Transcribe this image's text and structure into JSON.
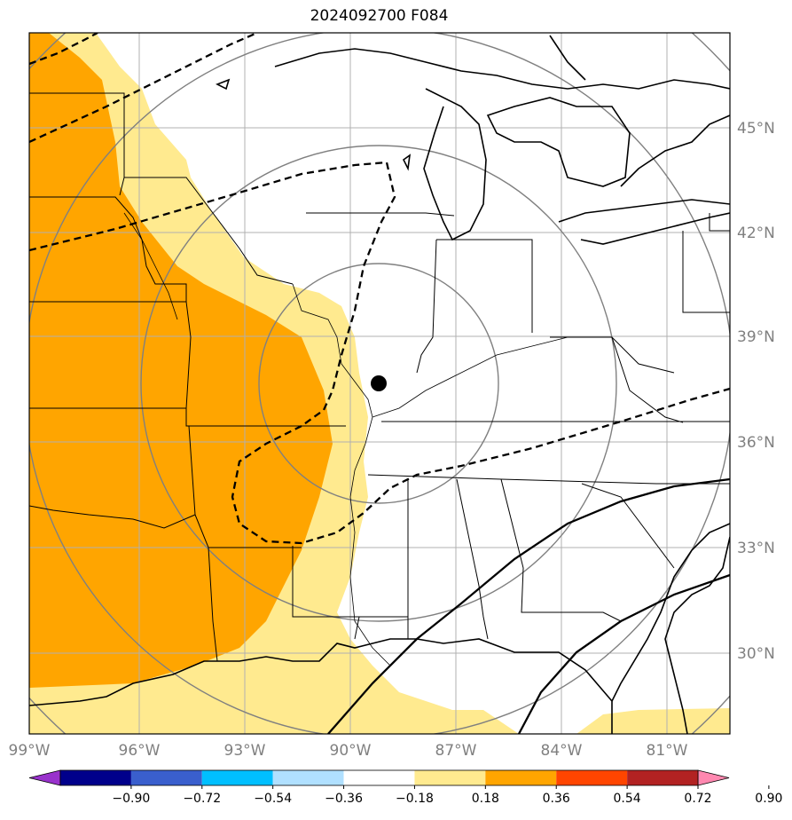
{
  "title": "2024092700 F084",
  "longitude_labels": [
    "99°W",
    "96°W",
    "93°W",
    "90°W",
    "87°W",
    "84°W",
    "81°W"
  ],
  "latitude_labels": [
    "30°N",
    "33°N",
    "36°N",
    "39°N",
    "42°N",
    "45°N"
  ],
  "colorbar": {
    "tick_labels": [
      "−0.90",
      "−0.72",
      "−0.54",
      "−0.36",
      "−0.18",
      "0.18",
      "0.36",
      "0.54",
      "0.72",
      "0.90"
    ],
    "colors": [
      "#9932cc",
      "#00008b",
      "#3a5fcd",
      "#00bfff",
      "#b0e0ff",
      "#ffffff",
      "#ffea8f",
      "#ffa500",
      "#ff4500",
      "#b22222",
      "#ff88b0"
    ]
  },
  "colors": {
    "light_yellow": "#ffea8f",
    "orange": "#ffa500",
    "grid": "#b0b0b0",
    "range_rings": "#808080"
  },
  "marker": {
    "label": "location-dot"
  }
}
